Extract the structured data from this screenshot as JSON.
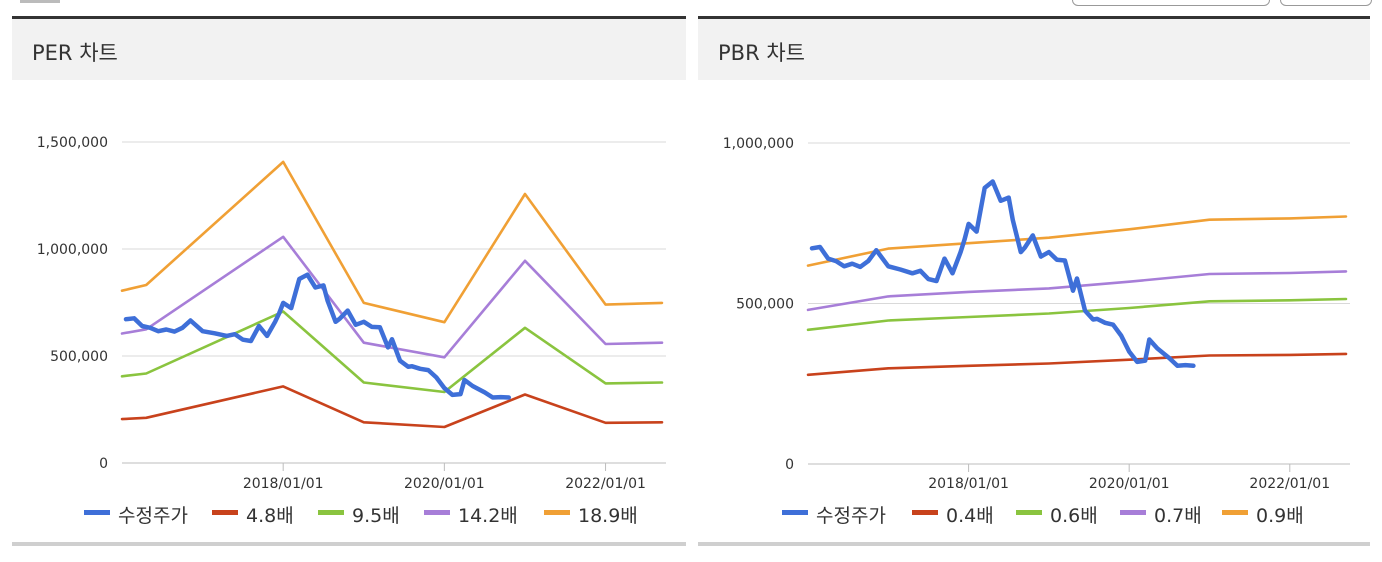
{
  "panels": [
    {
      "title": "PER 차트"
    },
    {
      "title": "PBR 차트"
    }
  ],
  "chart_data": [
    {
      "type": "line",
      "title": "PER 차트",
      "ylim": [
        0,
        1500000
      ],
      "yticks": [
        "1,500,000",
        "1,000,000",
        "500,000",
        "0"
      ],
      "ytick_values": [
        1500000,
        1000000,
        500000,
        0
      ],
      "xticks": [
        "2018/01/01",
        "2020/01/01",
        "2022/01/01"
      ],
      "xtick_values": [
        2018.0,
        2020.0,
        2022.0
      ],
      "xlim": [
        2016.0,
        2022.75
      ],
      "legend": [
        "수정주가",
        "4.8배",
        "9.5배",
        "14.2배",
        "18.9배"
      ],
      "series": [
        {
          "name": "수정주가",
          "color": "#3e6fd8",
          "x": [
            2016.05,
            2016.15,
            2016.25,
            2016.35,
            2016.45,
            2016.55,
            2016.65,
            2016.75,
            2016.85,
            2017.0,
            2017.15,
            2017.3,
            2017.4,
            2017.5,
            2017.6,
            2017.7,
            2017.8,
            2017.9,
            2017.95,
            2018.0,
            2018.1,
            2018.2,
            2018.3,
            2018.4,
            2018.5,
            2018.55,
            2018.65,
            2018.7,
            2018.8,
            2018.9,
            2019.0,
            2019.1,
            2019.2,
            2019.3,
            2019.35,
            2019.45,
            2019.55,
            2019.6,
            2019.7,
            2019.8,
            2019.9,
            2020.0,
            2020.1,
            2020.2,
            2020.25,
            2020.35,
            2020.4,
            2020.5,
            2020.6,
            2020.7,
            2020.8
          ],
          "y": [
            672000,
            676000,
            640000,
            632000,
            616000,
            624000,
            614000,
            632000,
            666000,
            616000,
            606000,
            594000,
            602000,
            576000,
            570000,
            640000,
            594000,
            660000,
            700000,
            748000,
            724000,
            860000,
            880000,
            820000,
            830000,
            760000,
            660000,
            674000,
            712000,
            646000,
            660000,
            636000,
            634000,
            540000,
            578000,
            478000,
            450000,
            452000,
            440000,
            434000,
            400000,
            350000,
            318000,
            322000,
            388000,
            360000,
            350000,
            330000,
            306000,
            308000,
            306000
          ]
        },
        {
          "name": "4.8배",
          "color": "#c8421c",
          "x": [
            2016.0,
            2016.3,
            2018.0,
            2019.0,
            2020.0,
            2021.0,
            2022.0,
            2022.7
          ],
          "y": [
            205000,
            211000,
            358000,
            190000,
            168000,
            320000,
            188000,
            190000
          ]
        },
        {
          "name": "9.5배",
          "color": "#8ac43f",
          "x": [
            2016.0,
            2016.3,
            2018.0,
            2019.0,
            2020.0,
            2021.0,
            2022.0,
            2022.7
          ],
          "y": [
            405000,
            418000,
            708000,
            376000,
            332000,
            632000,
            372000,
            376000
          ]
        },
        {
          "name": "14.2배",
          "color": "#a77ed8",
          "x": [
            2016.0,
            2016.3,
            2018.0,
            2019.0,
            2020.0,
            2021.0,
            2022.0,
            2022.7
          ],
          "y": [
            605000,
            625000,
            1057000,
            562000,
            494000,
            945000,
            556000,
            562000
          ]
        },
        {
          "name": "18.9배",
          "color": "#f0a035",
          "x": [
            2016.0,
            2016.3,
            2018.0,
            2019.0,
            2020.0,
            2021.0,
            2022.0,
            2022.7
          ],
          "y": [
            805000,
            832000,
            1407000,
            748000,
            658000,
            1257000,
            740000,
            748000
          ]
        }
      ]
    },
    {
      "type": "line",
      "title": "PBR 차트",
      "ylim": [
        0,
        1000000
      ],
      "yticks": [
        "1,000,000",
        "500,000",
        "0"
      ],
      "ytick_values": [
        1000000,
        500000,
        0
      ],
      "xticks": [
        "2018/01/01",
        "2020/01/01",
        "2022/01/01"
      ],
      "xtick_values": [
        2018.0,
        2020.0,
        2022.0
      ],
      "xlim": [
        2016.0,
        2022.75
      ],
      "legend": [
        "수정주가",
        "0.4배",
        "0.6배",
        "0.7배",
        "0.9배"
      ],
      "series": [
        {
          "name": "수정주가",
          "color": "#3e6fd8",
          "x": [
            2016.05,
            2016.15,
            2016.25,
            2016.35,
            2016.45,
            2016.55,
            2016.65,
            2016.75,
            2016.85,
            2017.0,
            2017.15,
            2017.3,
            2017.4,
            2017.5,
            2017.6,
            2017.7,
            2017.8,
            2017.9,
            2017.95,
            2018.0,
            2018.1,
            2018.2,
            2018.3,
            2018.4,
            2018.5,
            2018.55,
            2018.65,
            2018.7,
            2018.8,
            2018.9,
            2019.0,
            2019.1,
            2019.2,
            2019.3,
            2019.35,
            2019.45,
            2019.55,
            2019.6,
            2019.7,
            2019.8,
            2019.9,
            2020.0,
            2020.1,
            2020.2,
            2020.25,
            2020.35,
            2020.4,
            2020.5,
            2020.6,
            2020.7,
            2020.8
          ],
          "y": [
            672000,
            676000,
            640000,
            632000,
            616000,
            624000,
            614000,
            632000,
            666000,
            616000,
            606000,
            594000,
            602000,
            576000,
            570000,
            640000,
            594000,
            660000,
            700000,
            748000,
            724000,
            860000,
            880000,
            820000,
            830000,
            760000,
            660000,
            674000,
            712000,
            646000,
            660000,
            636000,
            634000,
            540000,
            578000,
            478000,
            450000,
            452000,
            440000,
            434000,
            400000,
            350000,
            318000,
            322000,
            388000,
            360000,
            350000,
            330000,
            306000,
            308000,
            306000
          ]
        },
        {
          "name": "0.4배",
          "color": "#c8421c",
          "x": [
            2016.0,
            2017.0,
            2018.0,
            2019.0,
            2020.0,
            2021.0,
            2022.0,
            2022.7
          ],
          "y": [
            278000,
            298000,
            306000,
            313000,
            325000,
            338000,
            340000,
            343000
          ]
        },
        {
          "name": "0.6배",
          "color": "#8ac43f",
          "x": [
            2016.0,
            2017.0,
            2018.0,
            2019.0,
            2020.0,
            2021.0,
            2022.0,
            2022.7
          ],
          "y": [
            418000,
            447000,
            458000,
            469000,
            486000,
            507000,
            510000,
            514000
          ]
        },
        {
          "name": "0.7배",
          "color": "#a77ed8",
          "x": [
            2016.0,
            2017.0,
            2018.0,
            2019.0,
            2020.0,
            2021.0,
            2022.0,
            2022.7
          ],
          "y": [
            480000,
            522000,
            536000,
            547000,
            568000,
            592000,
            595000,
            600000
          ]
        },
        {
          "name": "0.9배",
          "color": "#f0a035",
          "x": [
            2016.0,
            2017.0,
            2018.0,
            2019.0,
            2020.0,
            2021.0,
            2022.0,
            2022.7
          ],
          "y": [
            618000,
            671000,
            688000,
            705000,
            731000,
            761000,
            765000,
            771000
          ]
        }
      ]
    }
  ]
}
